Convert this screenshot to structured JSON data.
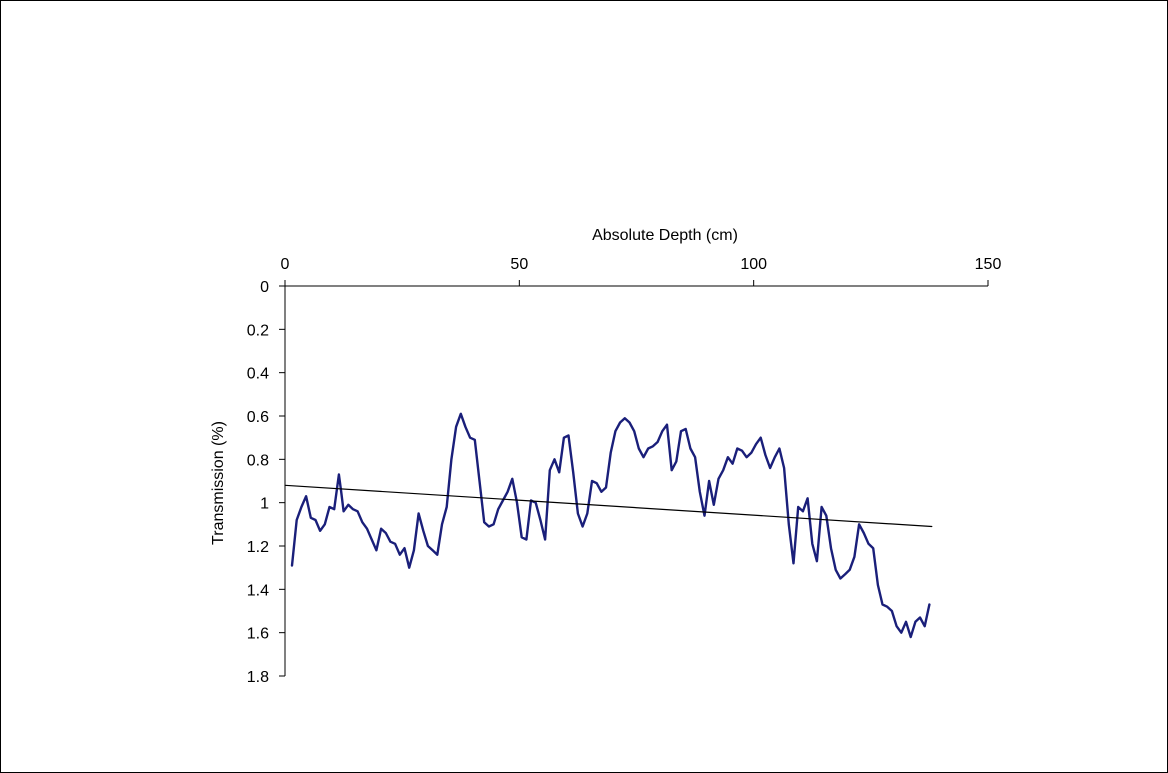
{
  "chart_data": {
    "type": "line",
    "x_axis": {
      "label": "Absolute Depth  (cm)",
      "position": "top",
      "range": [
        0,
        150
      ],
      "ticks": [
        0,
        50,
        100,
        150
      ],
      "tick_labels": [
        "0",
        "50",
        "100",
        "150"
      ]
    },
    "y_axis": {
      "label": "Transmission  (%)",
      "inverted": true,
      "range": [
        0,
        1.8
      ],
      "ticks": [
        0,
        0.2,
        0.4,
        0.6,
        0.8,
        1.0,
        1.2,
        1.4,
        1.6,
        1.8
      ],
      "tick_labels": [
        "0",
        "0.2",
        "0.4",
        "0.6",
        "0.8",
        "1",
        "1.2",
        "1.4",
        "1.6",
        "1.8"
      ]
    },
    "grid": false,
    "legend": "none",
    "series": [
      {
        "color": "#1a1f7a",
        "x": [
          1.5,
          2.5,
          3.5,
          4.5,
          5.5,
          6.5,
          7.5,
          8.5,
          9.5,
          10.5,
          11.5,
          12,
          12.5,
          13.5,
          14.5,
          15.5,
          16.5,
          17.5,
          18.5,
          19.5,
          20.5,
          21.5,
          22.5,
          23.5,
          24.5,
          25.5,
          26.5,
          27.5,
          28.5,
          29.5,
          30.5,
          31.5,
          32.5,
          33.5,
          34.5,
          35.5,
          36.5,
          37.5,
          38.5,
          39.5,
          40.5,
          41.5,
          42.5,
          43.5,
          44.5,
          45.5,
          46.5,
          47.5,
          48.5,
          49.5,
          50.5,
          51.5,
          52.5,
          53.5,
          54.5,
          55.5,
          56.5,
          57.5,
          58.5,
          59.5,
          60.5,
          61.5,
          62.5,
          63.5,
          64.5,
          65.5,
          66.5,
          67.5,
          68.5,
          69.5,
          70.5,
          71.5,
          72.5,
          73.5,
          74.5,
          75.5,
          76.5,
          77.5,
          78.5,
          79.5,
          80.5,
          81.5,
          82.5,
          83.5,
          84.5,
          85.5,
          86.5,
          87.5,
          88.5,
          89.5,
          90.5,
          91.5,
          92.5,
          93.5,
          94.5,
          95.5,
          96.5,
          97.5,
          98.5,
          99.5,
          100.5,
          101.5,
          102.5,
          103.5,
          104.5,
          105.5,
          106.5,
          107.5,
          108.5,
          109.5,
          110.5,
          111.5,
          112.5,
          113.5,
          114.5,
          115.5,
          116.5,
          117.5,
          118.5,
          119.5,
          120.5,
          121.5,
          122.5,
          123.5,
          124.5,
          125.5,
          126.5,
          127.5,
          128.5,
          129.5,
          130.5,
          131.5,
          132.5,
          133.5,
          134.5,
          135.5,
          136.5,
          137.5
        ],
        "y": [
          1.29,
          1.08,
          1.02,
          0.97,
          1.07,
          1.08,
          1.13,
          1.1,
          1.02,
          1.03,
          0.87,
          0.95,
          1.04,
          1.01,
          1.03,
          1.04,
          1.09,
          1.12,
          1.17,
          1.22,
          1.12,
          1.14,
          1.18,
          1.19,
          1.24,
          1.21,
          1.3,
          1.22,
          1.05,
          1.13,
          1.2,
          1.22,
          1.24,
          1.1,
          1.02,
          0.8,
          0.65,
          0.59,
          0.65,
          0.7,
          0.71,
          0.9,
          1.09,
          1.11,
          1.1,
          1.03,
          0.99,
          0.95,
          0.89,
          1.0,
          1.16,
          1.17,
          0.99,
          1.0,
          1.08,
          1.17,
          0.85,
          0.8,
          0.86,
          0.7,
          0.69,
          0.86,
          1.05,
          1.11,
          1.05,
          0.9,
          0.91,
          0.95,
          0.93,
          0.77,
          0.67,
          0.63,
          0.61,
          0.63,
          0.67,
          0.75,
          0.79,
          0.75,
          0.74,
          0.72,
          0.67,
          0.64,
          0.85,
          0.81,
          0.67,
          0.66,
          0.75,
          0.79,
          0.95,
          1.06,
          0.9,
          1.01,
          0.89,
          0.85,
          0.79,
          0.82,
          0.75,
          0.76,
          0.79,
          0.77,
          0.73,
          0.7,
          0.78,
          0.84,
          0.79,
          0.75,
          0.84,
          1.1,
          1.28,
          1.02,
          1.04,
          0.98,
          1.19,
          1.27,
          1.02,
          1.06,
          1.21,
          1.31,
          1.35,
          1.33,
          1.31,
          1.25,
          1.1,
          1.14,
          1.19,
          1.21,
          1.38,
          1.47,
          1.48,
          1.5,
          1.57,
          1.6,
          1.55,
          1.62,
          1.55,
          1.53,
          1.57,
          1.47
        ]
      },
      {
        "type": "trendline",
        "color": "#000000",
        "x": [
          0,
          138
        ],
        "y": [
          0.92,
          1.11
        ]
      }
    ]
  }
}
